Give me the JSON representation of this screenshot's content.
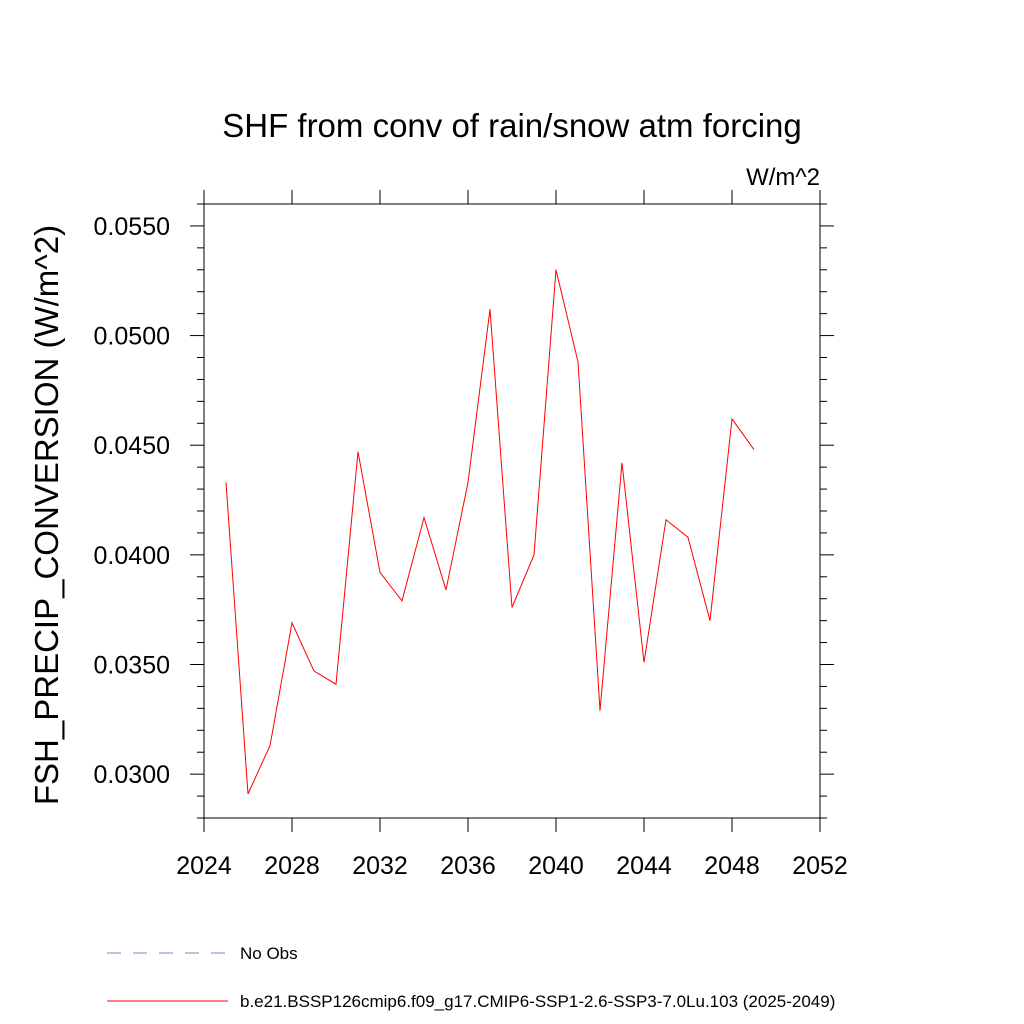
{
  "chart_data": {
    "type": "line",
    "title": "SHF from conv of rain/snow atm forcing",
    "units_label": "W/m^2",
    "xlabel": "",
    "ylabel": "FSH_PRECIP_CONVERSION  (W/m^2)",
    "xlim": [
      2024,
      2052
    ],
    "ylim": [
      0.028,
      0.056
    ],
    "x_ticks": [
      2024,
      2028,
      2032,
      2036,
      2040,
      2044,
      2048,
      2052
    ],
    "x_tick_labels": [
      "2024",
      "2028",
      "2032",
      "2036",
      "2040",
      "2044",
      "2048",
      "2052"
    ],
    "y_ticks": [
      0.03,
      0.035,
      0.04,
      0.045,
      0.05,
      0.055
    ],
    "y_tick_labels": [
      "0.0300",
      "0.0350",
      "0.0400",
      "0.0450",
      "0.0500",
      "0.0550"
    ],
    "grid": false,
    "legend_position": "bottom",
    "series": [
      {
        "name": "b.e21.BSSP126cmip6.f09_g17.CMIP6-SSP1-2.6-SSP3-7.0Lu.103 (2025-2049)",
        "color": "#ff0000",
        "x": [
          2025,
          2026,
          2027,
          2028,
          2029,
          2030,
          2031,
          2032,
          2033,
          2034,
          2035,
          2036,
          2037,
          2038,
          2039,
          2040,
          2041,
          2042,
          2043,
          2044,
          2045,
          2046,
          2047,
          2048,
          2049
        ],
        "values": [
          0.0433,
          0.0291,
          0.0313,
          0.0369,
          0.0347,
          0.0341,
          0.0447,
          0.0392,
          0.0379,
          0.0417,
          0.0384,
          0.0433,
          0.0512,
          0.0376,
          0.04,
          0.053,
          0.0488,
          0.0329,
          0.0442,
          0.0351,
          0.0416,
          0.0408,
          0.037,
          0.0462,
          0.0448
        ]
      }
    ],
    "legend": [
      {
        "label": "No Obs",
        "color": "#8c7fc4",
        "style": "dashed"
      },
      {
        "label": "b.e21.BSSP126cmip6.f09_g17.CMIP6-SSP1-2.6-SSP3-7.0Lu.103 (2025-2049)",
        "color": "#ff0000",
        "style": "solid"
      }
    ]
  }
}
